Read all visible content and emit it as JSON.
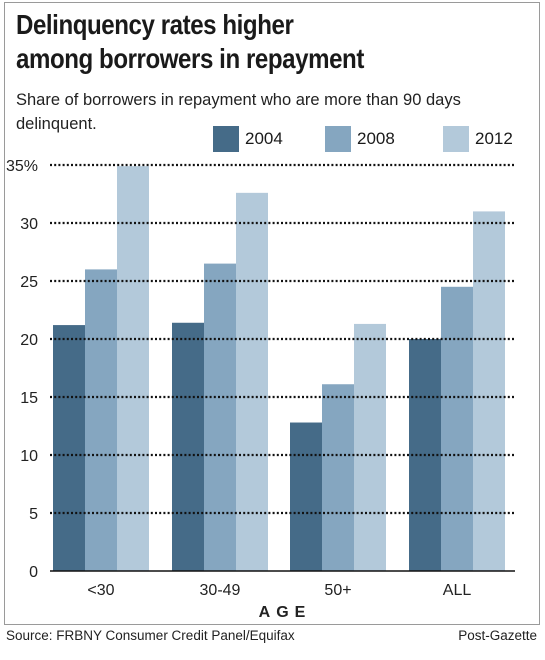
{
  "header": {
    "title_line1": "Delinquency rates higher",
    "title_line2": "among borrowers in repayment",
    "subtitle": "Share of borrowers in repayment who are more than 90 days delinquent."
  },
  "footer": {
    "source": "Source: FRBNY Consumer Credit Panel/Equifax",
    "credit": "Post-Gazette"
  },
  "colors": {
    "2004": "#456b88",
    "2008": "#85a6c0",
    "2012": "#b3c9da"
  },
  "chart_data": {
    "type": "bar",
    "title": "Delinquency rates higher among borrowers in repayment",
    "subtitle": "Share of borrowers in repayment who are more than 90 days delinquent.",
    "xlabel": "AGE",
    "ylabel": "",
    "categories": [
      "<30",
      "30-49",
      "50+",
      "ALL"
    ],
    "series": [
      {
        "name": "2004",
        "values": [
          21.2,
          21.4,
          12.8,
          20.0
        ]
      },
      {
        "name": "2008",
        "values": [
          26.0,
          26.5,
          16.1,
          24.5
        ]
      },
      {
        "name": "2012",
        "values": [
          34.9,
          32.6,
          21.3,
          31.0
        ]
      }
    ],
    "ylim": [
      0,
      35
    ],
    "yticks": [
      0,
      5,
      10,
      15,
      20,
      25,
      30,
      35
    ],
    "ytick_labels": [
      "0",
      "5",
      "10",
      "15",
      "20",
      "25",
      "30",
      "35%"
    ],
    "grid": true,
    "legend_position": "top-right"
  }
}
